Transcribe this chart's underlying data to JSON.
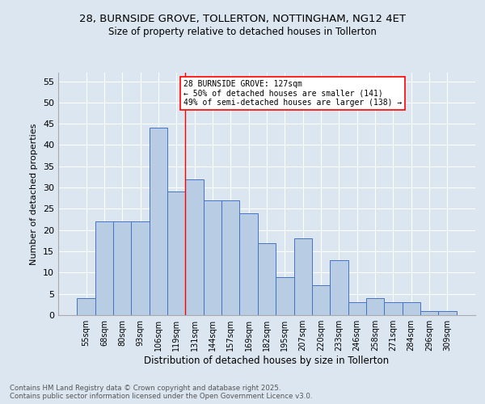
{
  "title_line1": "28, BURNSIDE GROVE, TOLLERTON, NOTTINGHAM, NG12 4ET",
  "title_line2": "Size of property relative to detached houses in Tollerton",
  "xlabel": "Distribution of detached houses by size in Tollerton",
  "ylabel": "Number of detached properties",
  "categories": [
    "55sqm",
    "68sqm",
    "80sqm",
    "93sqm",
    "106sqm",
    "119sqm",
    "131sqm",
    "144sqm",
    "157sqm",
    "169sqm",
    "182sqm",
    "195sqm",
    "207sqm",
    "220sqm",
    "233sqm",
    "246sqm",
    "258sqm",
    "271sqm",
    "284sqm",
    "296sqm",
    "309sqm"
  ],
  "values": [
    4,
    22,
    22,
    22,
    44,
    29,
    32,
    27,
    27,
    24,
    17,
    9,
    18,
    7,
    13,
    3,
    4,
    3,
    3,
    1,
    1
  ],
  "bar_color": "#b8cce4",
  "bar_edge_color": "#4472c4",
  "background_color": "#dce6f0",
  "red_line_index": 6,
  "annotation_text": "28 BURNSIDE GROVE: 127sqm\n← 50% of detached houses are smaller (141)\n49% of semi-detached houses are larger (138) →",
  "annotation_box_color": "white",
  "annotation_box_edge_color": "red",
  "ylim": [
    0,
    57
  ],
  "yticks": [
    0,
    5,
    10,
    15,
    20,
    25,
    30,
    35,
    40,
    45,
    50,
    55
  ],
  "footer_line1": "Contains HM Land Registry data © Crown copyright and database right 2025.",
  "footer_line2": "Contains public sector information licensed under the Open Government Licence v3.0."
}
